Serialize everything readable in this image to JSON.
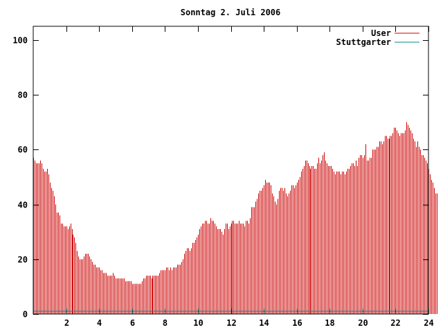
{
  "chart_data": {
    "type": "bar",
    "title": "Sonntag 2. Juli 2006",
    "xlabel": "",
    "ylabel": "",
    "xlim": [
      0,
      24
    ],
    "ylim": [
      0,
      105
    ],
    "x_ticks": [
      "2",
      "4",
      "6",
      "8",
      "10",
      "12",
      "14",
      "16",
      "18",
      "20",
      "22",
      "24"
    ],
    "y_ticks": [
      "0",
      "20",
      "40",
      "60",
      "80",
      "100"
    ],
    "grid": false,
    "legend_position": "top-right",
    "series": [
      {
        "name": "User",
        "color": "#cc0000",
        "interval_minutes": 5,
        "values": [
          57,
          56,
          55,
          55,
          55,
          56,
          55,
          53,
          52,
          52,
          53,
          51,
          48,
          46,
          45,
          43,
          40,
          37,
          37,
          36,
          33,
          33,
          32,
          32,
          32,
          31,
          32,
          33,
          31,
          29,
          28,
          26,
          23,
          21,
          20,
          20,
          20,
          21,
          22,
          22,
          22,
          21,
          20,
          19,
          18,
          18,
          17,
          17,
          17,
          16,
          16,
          15,
          15,
          15,
          14,
          14,
          14,
          14,
          15,
          14,
          13,
          13,
          13,
          13,
          13,
          13,
          13,
          12,
          12,
          12,
          12,
          12,
          11,
          11,
          11,
          11,
          11,
          11,
          11,
          12,
          13,
          13,
          14,
          14,
          14,
          14,
          13,
          14,
          14,
          14,
          14,
          14,
          15,
          16,
          16,
          16,
          16,
          17,
          17,
          16,
          17,
          16,
          17,
          17,
          17,
          18,
          18,
          18,
          19,
          20,
          22,
          23,
          24,
          24,
          23,
          24,
          26,
          26,
          27,
          28,
          29,
          31,
          32,
          33,
          33,
          34,
          34,
          33,
          33,
          35,
          34,
          34,
          33,
          32,
          31,
          31,
          31,
          30,
          29,
          31,
          33,
          33,
          31,
          32,
          33,
          34,
          34,
          33,
          33,
          33,
          34,
          33,
          33,
          33,
          32,
          34,
          34,
          33,
          35,
          39,
          39,
          39,
          41,
          42,
          44,
          45,
          45,
          46,
          47,
          49,
          48,
          48,
          48,
          47,
          44,
          43,
          41,
          40,
          42,
          45,
          46,
          46,
          45,
          46,
          44,
          43,
          44,
          45,
          47,
          47,
          46,
          47,
          48,
          49,
          50,
          52,
          53,
          54,
          56,
          56,
          55,
          54,
          53,
          54,
          54,
          53,
          53,
          55,
          57,
          55,
          56,
          58,
          59,
          56,
          55,
          54,
          54,
          54,
          53,
          52,
          51,
          52,
          52,
          52,
          51,
          52,
          52,
          51,
          52,
          53,
          53,
          54,
          55,
          55,
          54,
          56,
          54,
          57,
          58,
          58,
          57,
          58,
          62,
          56,
          56,
          57,
          57,
          60,
          60,
          60,
          61,
          61,
          63,
          63,
          62,
          63,
          65,
          65,
          64,
          64,
          65,
          65,
          66,
          68,
          68,
          67,
          66,
          65,
          66,
          66,
          66,
          67,
          70,
          69,
          68,
          67,
          66,
          64,
          63,
          61,
          63,
          61,
          60,
          58,
          58,
          57,
          56,
          55,
          53,
          51,
          49,
          48,
          46,
          44,
          44
        ]
      },
      {
        "name": "Stuttgarter",
        "color": "#008b8b",
        "interval_minutes": 5,
        "values": [
          1
        ]
      }
    ]
  }
}
